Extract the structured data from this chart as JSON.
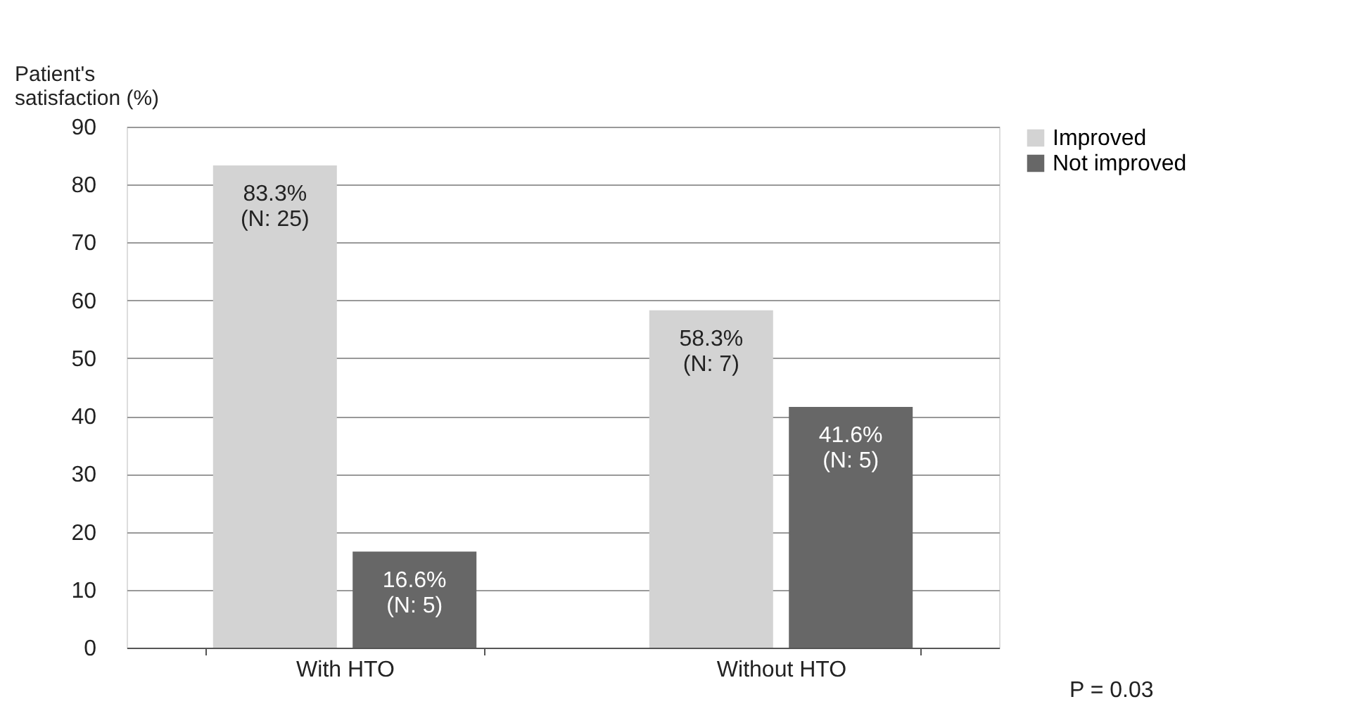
{
  "chart_data": {
    "type": "bar",
    "ylabel": "Patient's\nsatisfaction (%)",
    "categories": [
      "With HTO",
      "Without HTO"
    ],
    "series": [
      {
        "name": "Improved",
        "color": "#d3d3d3",
        "values": [
          83.3,
          58.3
        ],
        "value_labels": [
          "83.3%\n(N: 25)",
          "58.3%\n(N: 7)"
        ]
      },
      {
        "name": "Not improved",
        "color": "#676767",
        "values": [
          16.6,
          41.6
        ],
        "value_labels": [
          "16.6%\n(N: 5)",
          "41.6%\n(N: 5)"
        ]
      }
    ],
    "ylim": [
      0,
      90
    ],
    "yticks": [
      0,
      10,
      20,
      30,
      40,
      50,
      60,
      70,
      80,
      90
    ],
    "grid": "y",
    "legend": "right",
    "annotations": [
      "P = 0.03"
    ]
  }
}
